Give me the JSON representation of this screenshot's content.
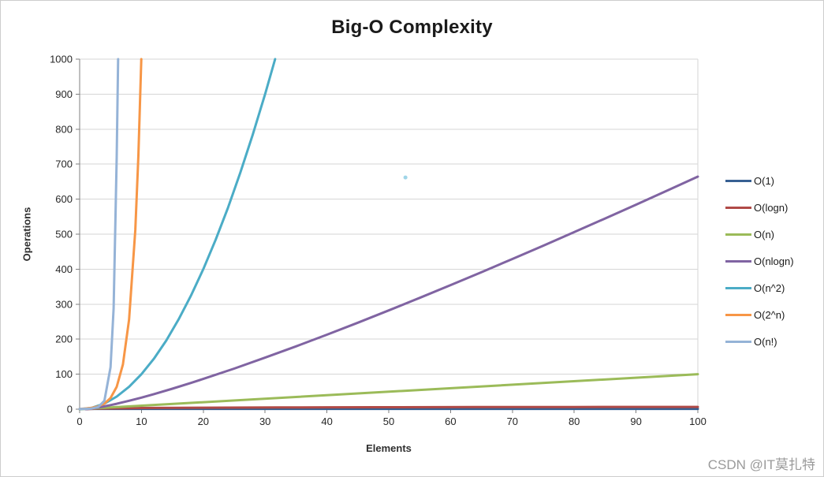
{
  "watermark": "CSDN @IT莫扎特",
  "chart_data": {
    "type": "line",
    "title": "Big-O Complexity",
    "xlabel": "Elements",
    "ylabel": "Operations",
    "xlim": [
      0,
      100
    ],
    "ylim": [
      0,
      1000
    ],
    "x_ticks": [
      0,
      10,
      20,
      30,
      40,
      50,
      60,
      70,
      80,
      90,
      100
    ],
    "y_ticks": [
      0,
      100,
      200,
      300,
      400,
      500,
      600,
      700,
      800,
      900,
      1000
    ],
    "grid": "horizontal",
    "legend_position": "right",
    "series": [
      {
        "name": "O(1)",
        "color": "#376092",
        "points": [
          [
            0,
            1
          ],
          [
            100,
            1
          ]
        ]
      },
      {
        "name": "O(logn)",
        "color": "#B04A47",
        "points": [
          [
            1,
            0
          ],
          [
            1.5,
            0.58
          ],
          [
            2,
            1
          ],
          [
            3,
            1.58
          ],
          [
            4,
            2
          ],
          [
            5,
            2.32
          ],
          [
            6,
            2.58
          ],
          [
            8,
            3
          ],
          [
            10,
            3.32
          ],
          [
            12,
            3.58
          ],
          [
            16,
            4
          ],
          [
            20,
            4.32
          ],
          [
            24,
            4.58
          ],
          [
            32,
            5
          ],
          [
            40,
            5.32
          ],
          [
            48,
            5.58
          ],
          [
            64,
            6
          ],
          [
            80,
            6.32
          ],
          [
            100,
            6.64
          ]
        ]
      },
      {
        "name": "O(n)",
        "color": "#9BBB59",
        "points": [
          [
            0,
            0
          ],
          [
            100,
            100
          ]
        ]
      },
      {
        "name": "O(nlogn)",
        "color": "#8064A2",
        "points": [
          [
            1,
            0
          ],
          [
            2,
            2
          ],
          [
            3,
            4.8
          ],
          [
            4,
            8
          ],
          [
            5,
            11.6
          ],
          [
            6,
            15.5
          ],
          [
            8,
            24
          ],
          [
            10,
            33.2
          ],
          [
            12,
            43
          ],
          [
            15,
            58.6
          ],
          [
            18,
            75.1
          ],
          [
            20,
            86.4
          ],
          [
            25,
            116.1
          ],
          [
            30,
            147.2
          ],
          [
            35,
            179.5
          ],
          [
            40,
            212.9
          ],
          [
            45,
            247.1
          ],
          [
            50,
            282.2
          ],
          [
            55,
            318
          ],
          [
            60,
            354.4
          ],
          [
            65,
            391.4
          ],
          [
            70,
            429
          ],
          [
            75,
            467.2
          ],
          [
            80,
            505.8
          ],
          [
            85,
            544.8
          ],
          [
            90,
            584.3
          ],
          [
            95,
            624.2
          ],
          [
            100,
            664.4
          ]
        ]
      },
      {
        "name": "O(n^2)",
        "color": "#4BACC6",
        "points": [
          [
            0,
            0
          ],
          [
            2,
            4
          ],
          [
            4,
            16
          ],
          [
            6,
            36
          ],
          [
            8,
            64
          ],
          [
            10,
            100
          ],
          [
            12,
            144
          ],
          [
            14,
            196
          ],
          [
            16,
            256
          ],
          [
            18,
            324
          ],
          [
            20,
            400
          ],
          [
            22,
            484
          ],
          [
            24,
            576
          ],
          [
            26,
            676
          ],
          [
            28,
            784
          ],
          [
            30,
            900
          ],
          [
            31.62,
            1000
          ]
        ]
      },
      {
        "name": "O(2^n)",
        "color": "#F79646",
        "points": [
          [
            0,
            1
          ],
          [
            1,
            2
          ],
          [
            2,
            4
          ],
          [
            3,
            8
          ],
          [
            4,
            16
          ],
          [
            5,
            32
          ],
          [
            6,
            64
          ],
          [
            7,
            128
          ],
          [
            8,
            256
          ],
          [
            9,
            512
          ],
          [
            9.5,
            724
          ],
          [
            9.97,
            1000
          ]
        ]
      },
      {
        "name": "O(n!)",
        "color": "#95B3D7",
        "points": [
          [
            0,
            1
          ],
          [
            1,
            1
          ],
          [
            2,
            2
          ],
          [
            3,
            6
          ],
          [
            4,
            24
          ],
          [
            5,
            120
          ],
          [
            5.5,
            288
          ],
          [
            6,
            720
          ],
          [
            6.22,
            1000
          ]
        ]
      }
    ],
    "stray_point": {
      "x": 52.7,
      "y": 662,
      "color": "#9FD5E8"
    }
  }
}
